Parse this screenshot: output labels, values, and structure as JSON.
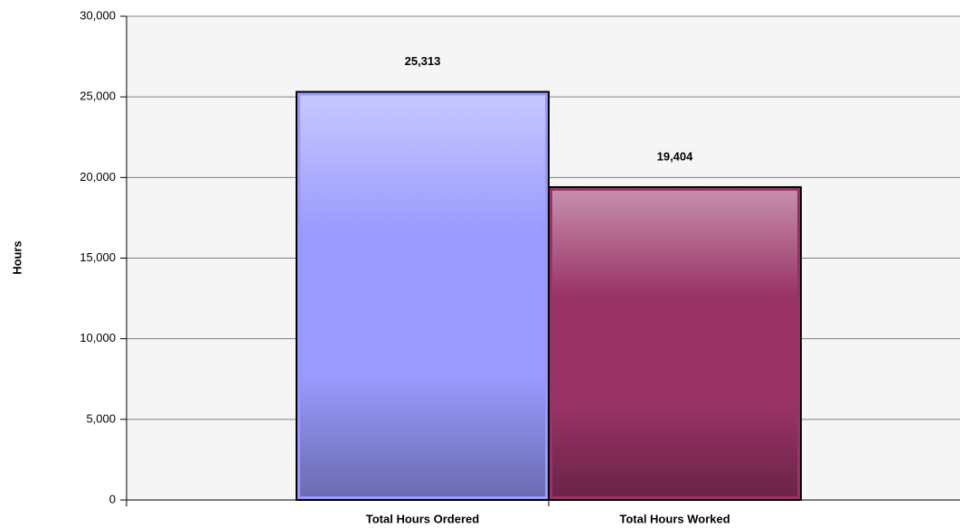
{
  "chart_data": {
    "type": "bar",
    "y_label": "Hours",
    "categories": [
      "Total Hours Ordered",
      "Total Hours Worked"
    ],
    "values": [
      25313,
      19404
    ],
    "value_labels": [
      "25,313",
      "19,404"
    ],
    "colors": [
      "#9999ff",
      "#993366"
    ],
    "ylim": [
      0,
      30000
    ],
    "yticks": [
      0,
      {
        "value": 5000,
        "label": "5,000"
      },
      {
        "value": 10000,
        "label": "10,000"
      },
      {
        "value": 15000,
        "label": "15,000"
      },
      {
        "value": 20000,
        "label": "20,000"
      },
      {
        "value": 25000,
        "label": "25,000"
      },
      {
        "value": 30000,
        "label": "30,000"
      }
    ],
    "grid": true
  }
}
